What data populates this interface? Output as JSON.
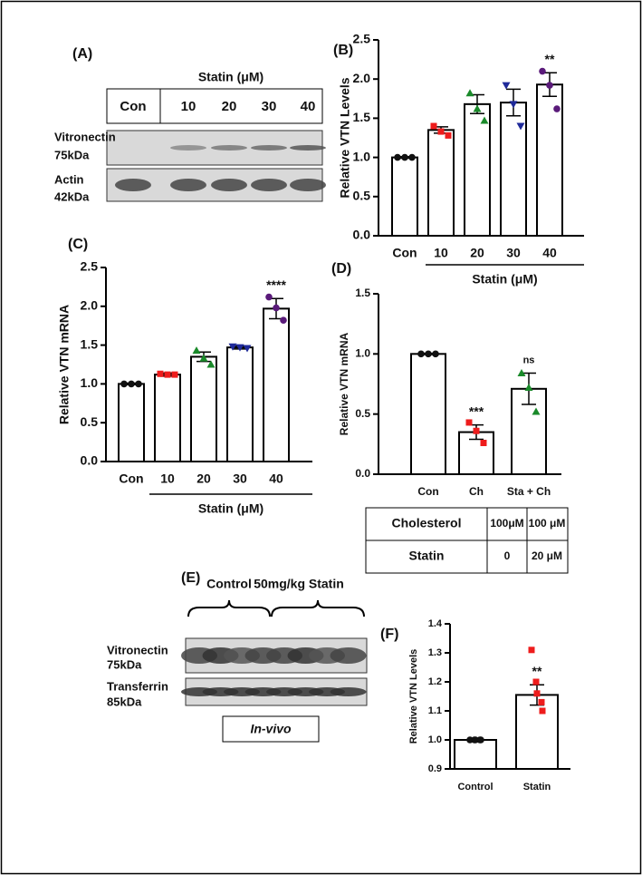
{
  "blot_a": {
    "panel_label": "(A)",
    "header": "Statin (μM)",
    "lanes": [
      "Con",
      "10",
      "20",
      "30",
      "40"
    ],
    "rows": [
      {
        "name": "Vitronectin",
        "size": "75kDa"
      },
      {
        "name": "Actin",
        "size": "42kDa"
      }
    ]
  },
  "blot_e": {
    "panel_label": "(E)",
    "groups": [
      "Control",
      "50mg/kg Statin"
    ],
    "rows": [
      {
        "name": "Vitronectin",
        "size": "75kDa"
      },
      {
        "name": "Transferrin",
        "size": "85kDa"
      }
    ],
    "caption": "In-vivo"
  },
  "table_d": {
    "rows": [
      [
        "Cholesterol",
        "100μM",
        "100 μM"
      ],
      [
        "Statin",
        "0",
        "20 μM"
      ]
    ]
  },
  "chart_data": [
    {
      "type": "bar",
      "panel_label": "(B)",
      "ylabel": "Relative VTN Levels",
      "group_label": "Statin (μM)",
      "categories": [
        "Con",
        "10",
        "20",
        "30",
        "40"
      ],
      "values": [
        1.0,
        1.35,
        1.68,
        1.7,
        1.93
      ],
      "errors": [
        0.01,
        0.04,
        0.12,
        0.17,
        0.15
      ],
      "points": [
        [
          1.0,
          1.0,
          1.0
        ],
        [
          1.4,
          1.33,
          1.28
        ],
        [
          1.82,
          1.62,
          1.47
        ],
        [
          1.92,
          1.68,
          1.4
        ],
        [
          2.1,
          1.92,
          1.62
        ]
      ],
      "point_colors": [
        "#111111",
        "#ee1c1c",
        "#1a8a2a",
        "#1f2a9a",
        "#5a1a7a"
      ],
      "markers": [
        "circle",
        "square",
        "triangle",
        "triangle-down",
        "circle"
      ],
      "annotations": [
        null,
        null,
        null,
        null,
        "**"
      ],
      "ylim": [
        0,
        2.5
      ],
      "yticks": [
        {
          "value": 0,
          "label": "0.0"
        },
        0.5,
        {
          "value": 1,
          "label": "1.0"
        },
        1.5,
        {
          "value": 2,
          "label": "2.0"
        },
        2.5
      ]
    },
    {
      "type": "bar",
      "panel_label": "(C)",
      "ylabel": "Relative VTN mRNA",
      "group_label": "Statin (μM)",
      "categories": [
        "Con",
        "10",
        "20",
        "30",
        "40"
      ],
      "values": [
        1.0,
        1.12,
        1.35,
        1.47,
        1.97
      ],
      "errors": [
        0.01,
        0.02,
        0.06,
        0.02,
        0.13
      ],
      "points": [
        [
          1.0,
          1.0,
          1.0
        ],
        [
          1.13,
          1.12,
          1.12
        ],
        [
          1.43,
          1.33,
          1.25
        ],
        [
          1.48,
          1.47,
          1.46
        ],
        [
          2.12,
          1.98,
          1.82
        ]
      ],
      "point_colors": [
        "#111111",
        "#ee1c1c",
        "#1a8a2a",
        "#1f2a9a",
        "#5a1a7a"
      ],
      "markers": [
        "circle",
        "square",
        "triangle",
        "triangle-down",
        "circle"
      ],
      "annotations": [
        null,
        null,
        null,
        null,
        "****"
      ],
      "ylim": [
        0,
        2.5
      ],
      "yticks": [
        {
          "value": 0,
          "label": "0.0"
        },
        0.5,
        {
          "value": 1,
          "label": "1.0"
        },
        1.5,
        {
          "value": 2,
          "label": "2.0"
        },
        2.5
      ]
    },
    {
      "type": "bar",
      "panel_label": "(D)",
      "ylabel": "Relative VTN mRNA",
      "categories": [
        "Con",
        "Ch",
        "Sta + Ch"
      ],
      "values": [
        1.0,
        0.35,
        0.71
      ],
      "errors": [
        0.005,
        0.06,
        0.13
      ],
      "points": [
        [
          1.0,
          1.0,
          1.0
        ],
        [
          0.43,
          0.36,
          0.26
        ],
        [
          0.84,
          0.72,
          0.52
        ]
      ],
      "point_colors": [
        "#111111",
        "#ee1c1c",
        "#1a8a2a"
      ],
      "markers": [
        "circle",
        "square",
        "triangle"
      ],
      "annotations": [
        null,
        "***",
        "ns"
      ],
      "ylim": [
        0,
        1.5
      ],
      "yticks": [
        {
          "value": 0,
          "label": "0.0"
        },
        0.5,
        {
          "value": 1,
          "label": "1.0"
        },
        1.5
      ]
    },
    {
      "type": "bar",
      "panel_label": "(F)",
      "ylabel": "Relative VTN Levels",
      "categories": [
        "Control",
        "Statin"
      ],
      "values": [
        1.0,
        1.155
      ],
      "errors": [
        0.001,
        0.035
      ],
      "points": [
        [
          1.0,
          1.0,
          1.0,
          1.0,
          1.0
        ],
        [
          1.31,
          1.2,
          1.16,
          1.13,
          1.1
        ]
      ],
      "point_colors": [
        "#111111",
        "#ee1c1c"
      ],
      "markers": [
        "circle",
        "square"
      ],
      "annotations": [
        null,
        "**"
      ],
      "ylim": [
        0.9,
        1.4
      ],
      "yticks": [
        0.9,
        {
          "value": 1,
          "label": "1.0"
        },
        1.1,
        1.2,
        1.3,
        1.4
      ]
    }
  ]
}
